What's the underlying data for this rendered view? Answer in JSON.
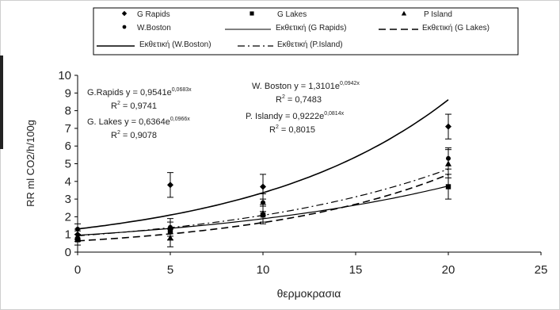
{
  "chart_data": {
    "type": "scatter",
    "xlabel": "θερμοκρασια",
    "ylabel": "RR ml CO2/h/100g",
    "xlim": [
      0,
      25
    ],
    "ylim": [
      0,
      10
    ],
    "xticks": [
      "0",
      "5",
      "10",
      "15",
      "20",
      "25"
    ],
    "yticks": [
      "0",
      "1",
      "2",
      "3",
      "4",
      "5",
      "6",
      "7",
      "8",
      "9",
      "10"
    ],
    "grid": false,
    "legend_position": "top",
    "series": [
      {
        "name": "G Rapids",
        "marker": "diamond",
        "x": [
          0,
          5,
          10,
          20
        ],
        "y": [
          1.0,
          3.8,
          3.7,
          7.1
        ],
        "err": [
          0.3,
          0.7,
          0.7,
          0.7
        ]
      },
      {
        "name": "G Lakes",
        "marker": "square",
        "x": [
          0,
          5,
          10,
          20
        ],
        "y": [
          0.7,
          1.2,
          2.1,
          3.7
        ],
        "err": [
          0.3,
          0.5,
          0.5,
          0.7
        ]
      },
      {
        "name": "P Island",
        "marker": "triangle",
        "x": [
          0,
          5,
          10,
          20
        ],
        "y": [
          0.9,
          0.8,
          2.2,
          5.0
        ],
        "err": [
          0.3,
          0.5,
          0.5,
          0.8
        ]
      },
      {
        "name": "W.Boston",
        "marker": "circle",
        "x": [
          0,
          5,
          10,
          20
        ],
        "y": [
          1.3,
          1.4,
          2.8,
          5.3
        ],
        "err": [
          0.3,
          0.5,
          0.5,
          0.6
        ]
      }
    ],
    "trendlines": [
      {
        "name": "Εκθετική (G Rapids)",
        "a": 0.9541,
        "b": 0.0683,
        "dash": "solid",
        "width": 1.2
      },
      {
        "name": "Εκθετική (G Lakes)",
        "a": 0.6364,
        "b": 0.0966,
        "dash": "long",
        "width": 1.6
      },
      {
        "name": "Εκθετική (W.Boston)",
        "a": 1.3101,
        "b": 0.0942,
        "dash": "solid",
        "width": 1.6
      },
      {
        "name": "Εκθετική (P.Island)",
        "a": 0.9222,
        "b": 0.0814,
        "dash": "dashdot",
        "width": 1.2
      }
    ],
    "annotations": [
      {
        "id": "grapids",
        "eq_prefix": "G.Rapids y = 0,9541e",
        "eq_exp": "0,0683x",
        "r2_label": "R",
        "r2_sup": "2",
        "r2_value": " = 0,9741"
      },
      {
        "id": "glakes",
        "eq_prefix": "G. Lakes y = 0,6364e",
        "eq_exp": "0,0966x",
        "r2_label": "R",
        "r2_sup": "2",
        "r2_value": " = 0,9078"
      },
      {
        "id": "wboston",
        "eq_prefix": "W. Boston y = 1,3101e",
        "eq_exp": "0,0942x",
        "r2_label": "R",
        "r2_sup": "2",
        "r2_value": " = 0,7483"
      },
      {
        "id": "pisland",
        "eq_prefix": "P. Islandy = 0,9222e",
        "eq_exp": "0,0814x",
        "r2_label": "R",
        "r2_sup": "2",
        "r2_value": " = 0,8015"
      }
    ],
    "legend": [
      {
        "label": "G Rapids",
        "symbol": "diamond"
      },
      {
        "label": "G Lakes",
        "symbol": "square"
      },
      {
        "label": "P Island",
        "symbol": "triangle"
      },
      {
        "label": "W.Boston",
        "symbol": "circle"
      },
      {
        "label": "Εκθετική (G Rapids)",
        "symbol": "line-solid"
      },
      {
        "label": "Εκθετική (G Lakes)",
        "symbol": "line-long"
      },
      {
        "label": "Εκθετική (W.Boston)",
        "symbol": "line-solid-thick"
      },
      {
        "label": "Εκθετική (P.Island)",
        "symbol": "line-dashdot"
      }
    ]
  }
}
